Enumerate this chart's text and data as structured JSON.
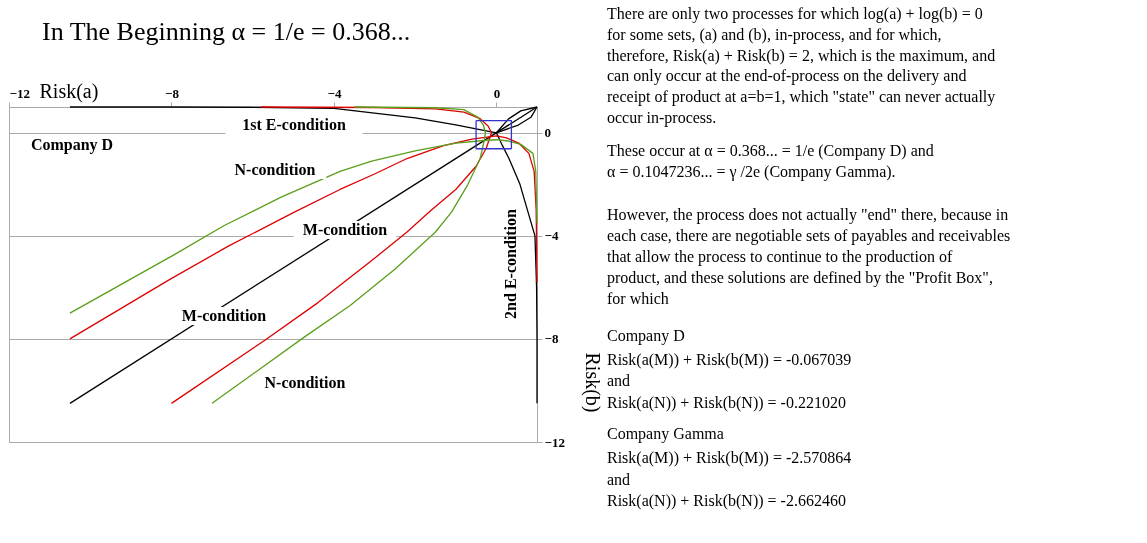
{
  "chart_data": {
    "type": "line",
    "title": "In The Beginning α = 1/e = 0.368...",
    "xlabel": "Risk(a)",
    "ylabel": "Risk(b)",
    "xlim": [
      -12,
      1
    ],
    "ylim": [
      -12,
      1
    ],
    "xticks": [
      -12,
      -8,
      -4,
      0
    ],
    "yticks": [
      0,
      -4,
      -8,
      -12
    ],
    "grid": "y",
    "legend": false,
    "marker": "none",
    "line_style": "solid",
    "series": [
      {
        "color": "#000000",
        "x": [
          -10.5,
          -8,
          -6,
          -4,
          -2,
          -1,
          -0.5,
          0,
          0.3,
          0.6,
          1
        ],
        "values": [
          1,
          1,
          0.99,
          0.95,
          0.58,
          0.31,
          0.15,
          0,
          0.54,
          0.85,
          1
        ]
      },
      {
        "color": "#000000",
        "x": [
          1,
          1,
          0.99,
          0.95,
          0.58,
          0.31,
          0.15,
          0,
          0.54,
          0.85,
          1
        ],
        "values": [
          -10.5,
          -8,
          -6,
          -4,
          -2,
          -1,
          -0.5,
          0,
          0.3,
          0.6,
          1
        ]
      },
      {
        "color": "#000000",
        "x": [
          -10.5,
          1
        ],
        "values": [
          -10.5,
          1
        ]
      },
      {
        "color": "#dd0000",
        "x": [
          -5.8,
          -3,
          -1.5,
          -0.8,
          -0.4,
          -0.2,
          -0.12,
          -0.25,
          -0.5,
          -1.0,
          -1.6,
          -2.2,
          -3.1,
          -4.4,
          -5.7,
          -8
        ],
        "values": [
          1,
          0.98,
          0.93,
          0.8,
          0.55,
          0.25,
          0,
          -0.6,
          -1.3,
          -2.2,
          -3.0,
          -3.85,
          -5.0,
          -6.6,
          -8.05,
          -10.5
        ]
      },
      {
        "color": "#dd0000",
        "x": [
          1,
          0.98,
          0.93,
          0.8,
          0.55,
          0.25,
          0,
          -0.6,
          -1.3,
          -2.2,
          -3.0,
          -3.85,
          -5.0,
          -6.6,
          -8.05,
          -10.5
        ],
        "values": [
          -5.8,
          -3,
          -1.5,
          -0.8,
          -0.4,
          -0.2,
          -0.12,
          -0.25,
          -0.5,
          -1.0,
          -1.6,
          -2.2,
          -3.1,
          -4.4,
          -5.7,
          -8
        ]
      },
      {
        "color": "#5a9e1a",
        "x": [
          -3.5,
          -1.5,
          -0.8,
          -0.45,
          -0.32,
          -0.27,
          -0.3,
          -0.4,
          -0.7,
          -1.1,
          -1.5,
          -2.5,
          -3.6,
          -4.74,
          -7
        ],
        "values": [
          1,
          0.97,
          0.9,
          0.6,
          0.3,
          0,
          -0.3,
          -1,
          -2,
          -3.07,
          -3.85,
          -5.3,
          -6.7,
          -7.94,
          -10.5
        ]
      },
      {
        "color": "#5a9e1a",
        "x": [
          1,
          0.97,
          0.9,
          0.6,
          0.3,
          0,
          -0.3,
          -1,
          -2,
          -3.07,
          -3.85,
          -5.3,
          -6.7,
          -7.94,
          -10.5
        ],
        "values": [
          -3.5,
          -1.5,
          -0.8,
          -0.45,
          -0.32,
          -0.27,
          -0.3,
          -0.4,
          -0.7,
          -1.1,
          -1.5,
          -2.5,
          -3.6,
          -4.74,
          -7
        ]
      },
      {
        "color": "#3333cc",
        "x": [
          -0.5,
          0.37,
          0.37
        ],
        "values": [
          0.47,
          0.47,
          -0.62
        ]
      },
      {
        "color": "#3333cc",
        "x": [
          0.37,
          -0.5,
          -0.5
        ],
        "values": [
          -0.62,
          -0.62,
          0.47
        ]
      }
    ],
    "annotations": [
      "1st E-condition",
      "Company D",
      "N-condition",
      "M-condition",
      "M-condition",
      "N-condition",
      "2nd E-condition",
      "There are only two processes for which log(a) + log(b) = 0",
      "for some sets, (a) and (b), in-process, and for which,",
      "therefore, Risk(a) + Risk(b) = 2, which is the maximum, and",
      "can only occur at the end-of-process on the delivery and",
      "receipt of product at a=b=1, which \"state\" can never actually",
      "occur in-process.",
      "These occur at α = 0.368... = 1/e (Company D) and",
      "α = 0.1047236... = γ /2e (Company Gamma).",
      "However, the process does not actually \"end\" there, because in",
      "each case, there are negotiable sets of payables and receivables",
      "that allow the process to continue to the production of",
      "product, and these solutions are defined by the \"Profit Box\",",
      "for which",
      "Company D",
      "Risk(a(M)) + Risk(b(M)) =  -0.067039",
      "and",
      "Risk(a(N)) + Risk(b(N))  =  -0.221020",
      "Company Gamma",
      "Risk(a(M)) + Risk(b(M)) =  -2.570864",
      "and",
      "Risk(a(N)) + Risk(b(N))  =  -2.662460"
    ]
  }
}
